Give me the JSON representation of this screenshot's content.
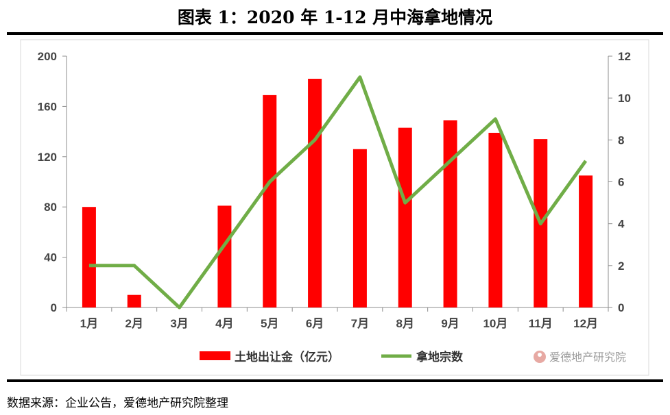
{
  "header": {
    "title": "图表 1：2020 年 1-12 月中海拿地情况"
  },
  "footer": {
    "source": "数据来源：企业公告，爱德地产研究院整理"
  },
  "watermark": {
    "text": "爱德地产研究院"
  },
  "chart_data": {
    "type": "bar",
    "categories": [
      "1月",
      "2月",
      "3月",
      "4月",
      "5月",
      "6月",
      "7月",
      "8月",
      "9月",
      "10月",
      "11月",
      "12月"
    ],
    "series": [
      {
        "name": "土地出让金（亿元）",
        "type": "bar",
        "axis": "left",
        "color": "#ff0000",
        "values": [
          80,
          10,
          0,
          81,
          169,
          182,
          126,
          143,
          149,
          139,
          134,
          105
        ]
      },
      {
        "name": "拿地宗数",
        "type": "line",
        "axis": "right",
        "color": "#70ad47",
        "values": [
          2,
          2,
          0,
          3,
          6,
          8,
          11,
          5,
          7,
          9,
          4,
          7
        ]
      }
    ],
    "y_left": {
      "lim": [
        0,
        200
      ],
      "ticks": [
        "0",
        "40",
        "80",
        "120",
        "160",
        "200"
      ]
    },
    "y_right": {
      "lim": [
        0,
        12
      ],
      "ticks": [
        "0",
        "2",
        "4",
        "6",
        "8",
        "10",
        "12"
      ]
    },
    "legend_position": "bottom-center",
    "grid": false
  }
}
